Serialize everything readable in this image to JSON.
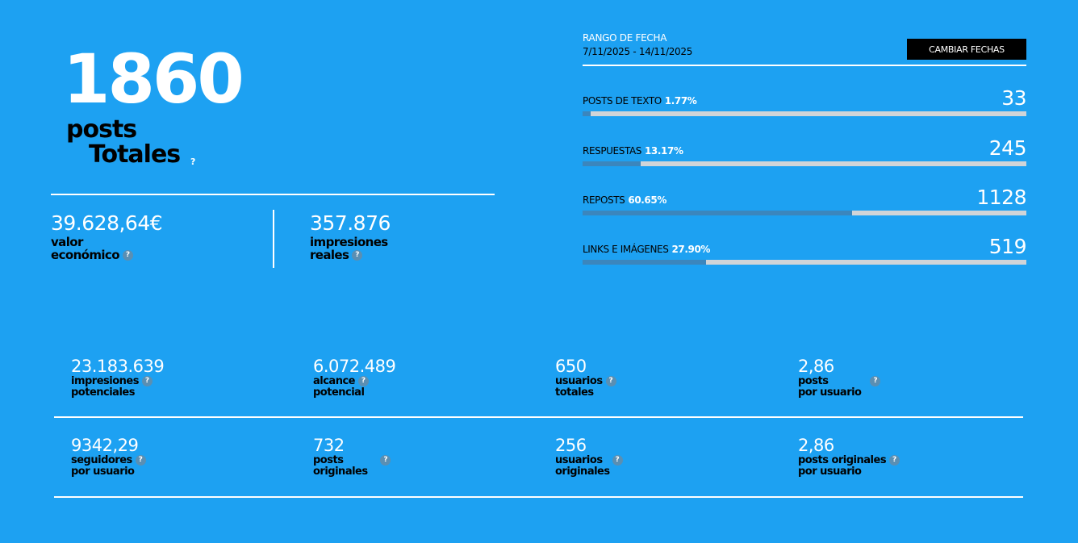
{
  "summary": {
    "total_posts": "1860",
    "label_line1": "posts",
    "label_line2": "Totales",
    "help": "?"
  },
  "kpis": [
    {
      "value": "39.628,64€",
      "label_line1": "valor",
      "label_line2": "económico",
      "help": "?"
    },
    {
      "value": "357.876",
      "label_line1": "impresiones",
      "label_line2": "reales",
      "help": "?"
    }
  ],
  "date_range": {
    "title": "RANGO DE FECHA",
    "dates": "7/11/2025 - 14/11/2025",
    "button_label": "CAMBIAR FECHAS"
  },
  "breakdown": [
    {
      "label": "POSTS DE TEXTO",
      "percent": "1.77%",
      "fraction": 0.0177,
      "value": "33"
    },
    {
      "label": "RESPUESTAS",
      "percent": "13.17%",
      "fraction": 0.1317,
      "value": "245"
    },
    {
      "label": "REPOSTS",
      "percent": "60.65%",
      "fraction": 0.6065,
      "value": "1128"
    },
    {
      "label": "LINKS E IMÁGENES",
      "percent": "27.90%",
      "fraction": 0.279,
      "value": "519"
    }
  ],
  "stats_row1": [
    {
      "value": "23.183.639",
      "label_line1": "impresiones",
      "label_line2": "potenciales",
      "help": "?"
    },
    {
      "value": "6.072.489",
      "label_line1": "alcance",
      "label_line2": "potencial",
      "help": "?"
    },
    {
      "value": "650",
      "label_line1": "usuarios",
      "label_line2": "totales",
      "help": "?"
    },
    {
      "value": "2,86",
      "label_line1": "posts",
      "label_line2": "por usuario",
      "help": "?"
    }
  ],
  "stats_row2": [
    {
      "value": "9342,29",
      "label_line1": "seguidores",
      "label_line2": "por usuario",
      "help": "?"
    },
    {
      "value": "732",
      "label_line1": "posts",
      "label_line2": "originales",
      "help": "?"
    },
    {
      "value": "256",
      "label_line1": "usuarios",
      "label_line2": "originales",
      "help": "?"
    },
    {
      "value": "2,86",
      "label_line1": "posts originales",
      "label_line2": "por usuario",
      "help": "?"
    }
  ],
  "colors": {
    "background": "#1da1f2",
    "bar_track": "#d0d4d8",
    "bar_fill": "#3b86bd",
    "help_icon": "#5a8fb3"
  }
}
